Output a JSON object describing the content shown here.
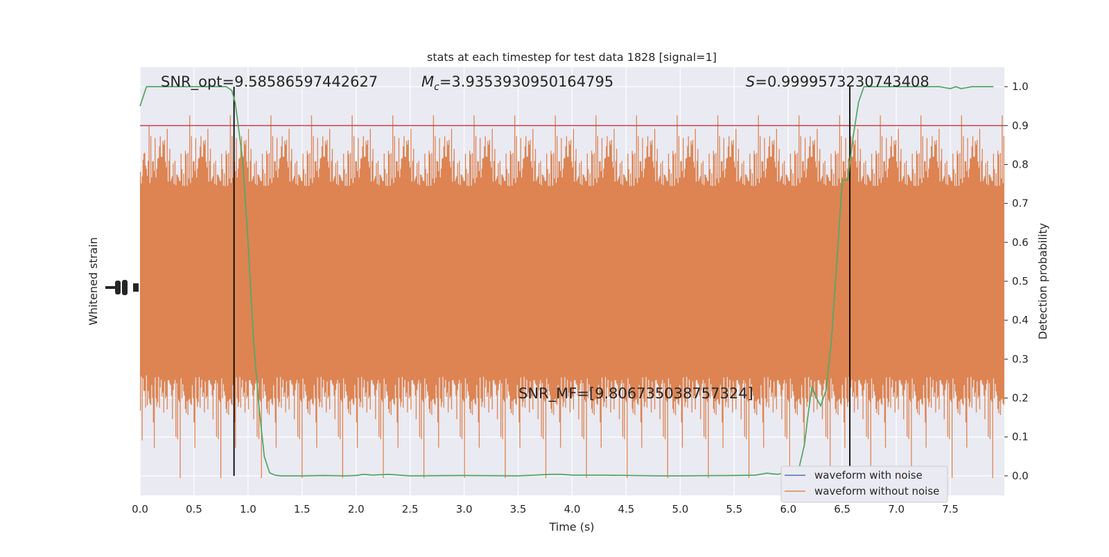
{
  "chart_data": {
    "type": "line",
    "title": "stats at each timestep for test data 1828 [signal=1]",
    "xlabel": "Time (s)",
    "ylabel_left": "Whitened strain",
    "ylabel_right": "Detection probability",
    "xlim": [
      0.0,
      8.0
    ],
    "ylim_right": [
      -0.05,
      1.05
    ],
    "x_ticks": [
      "0.0",
      "0.5",
      "1.0",
      "1.5",
      "2.0",
      "2.5",
      "3.0",
      "3.5",
      "4.0",
      "4.5",
      "5.0",
      "5.5",
      "6.0",
      "6.5",
      "7.0",
      "7.5"
    ],
    "y_ticks_right": [
      "0.0",
      "0.1",
      "0.2",
      "0.3",
      "0.4",
      "0.5",
      "0.6",
      "0.7",
      "0.8",
      "0.9",
      "1.0"
    ],
    "grid": true,
    "annotations": {
      "snr_opt": "SNR_opt=9.58586597442627",
      "mc_symbol": "M",
      "mc_sub": "c",
      "mc_value": "=3.9353930950164795",
      "s_symbol": "S",
      "s_value": "=0.9999573230743408",
      "snr_mf": "SNR_MF=[9.806735038757324]"
    },
    "threshold": 0.9,
    "vertical_lines_x": [
      0.87,
      6.57
    ],
    "legend": {
      "placement": "lower-right",
      "entries": [
        {
          "label": "waveform with noise",
          "color": "#4c72b0"
        },
        {
          "label": "waveform without noise",
          "color": "#dd8452"
        }
      ]
    },
    "series": [
      {
        "name": "waveform without noise",
        "color": "#dd8452",
        "style": "dense noise band around center"
      },
      {
        "color": "#55a868",
        "x": [
          0.0,
          0.06,
          0.12,
          0.2,
          0.3,
          0.4,
          0.5,
          0.6,
          0.7,
          0.8,
          0.85,
          0.88,
          0.9,
          0.95,
          1.0,
          1.05,
          1.1,
          1.15,
          1.2,
          1.25,
          1.3,
          1.4,
          1.5,
          1.7,
          1.9,
          2.0,
          2.07,
          2.15,
          2.3,
          2.5,
          3.0,
          3.5,
          3.8,
          3.9,
          4.0,
          4.3,
          4.8,
          5.0,
          5.5,
          5.7,
          5.8,
          5.9,
          6.0,
          6.1,
          6.15,
          6.18,
          6.22,
          6.26,
          6.3,
          6.35,
          6.4,
          6.45,
          6.5,
          6.55,
          6.6,
          6.65,
          6.7,
          6.8,
          6.9,
          7.0,
          7.1,
          7.2,
          7.3,
          7.4,
          7.5,
          7.55,
          7.6,
          7.7,
          7.8,
          7.9
        ],
        "values": [
          0.95,
          1.0,
          1.0,
          1.0,
          1.0,
          1.0,
          1.0,
          1.0,
          1.0,
          1.0,
          0.99,
          0.96,
          0.92,
          0.81,
          0.6,
          0.35,
          0.18,
          0.05,
          0.008,
          0.002,
          0.0,
          0.0,
          0.0,
          0.001,
          0.0,
          0.001,
          0.004,
          0.002,
          0.004,
          0.0,
          0.001,
          0.0,
          0.004,
          0.004,
          0.002,
          0.002,
          0.0,
          0.0,
          0.001,
          0.002,
          0.007,
          0.004,
          0.01,
          0.02,
          0.08,
          0.15,
          0.23,
          0.2,
          0.18,
          0.22,
          0.35,
          0.55,
          0.76,
          0.76,
          0.87,
          0.96,
          1.0,
          1.0,
          1.0,
          1.0,
          1.0,
          1.0,
          1.0,
          1.0,
          0.995,
          1.0,
          0.995,
          1.0,
          1.0,
          1.0
        ]
      }
    ]
  }
}
